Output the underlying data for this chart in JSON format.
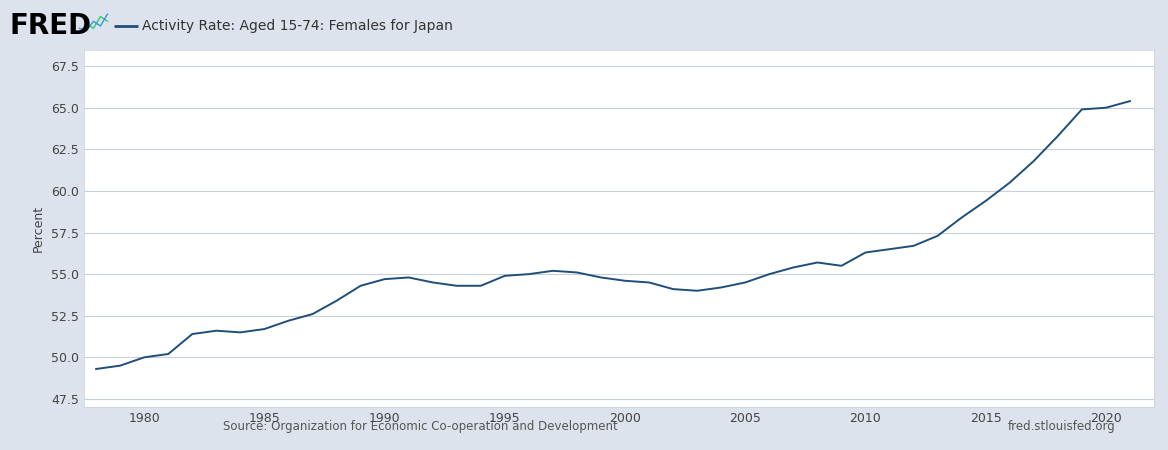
{
  "title": "Activity Rate: Aged 15-74: Females for Japan",
  "ylabel": "Percent",
  "source_left": "Source: Organization for Economic Co-operation and Development",
  "source_right": "fred.stlouisfed.org",
  "line_color": "#1f4e79",
  "background_color": "#dce3ed",
  "plot_bg_color": "#ffffff",
  "grid_color": "#c8d0dc",
  "header_bg": "#dce3ed",
  "ylim": [
    47.0,
    68.5
  ],
  "yticks": [
    47.5,
    50.0,
    52.5,
    55.0,
    57.5,
    60.0,
    62.5,
    65.0,
    67.5
  ],
  "xlim": [
    1977.5,
    2022.0
  ],
  "xticks": [
    1980,
    1985,
    1990,
    1995,
    2000,
    2005,
    2010,
    2015,
    2020
  ],
  "data": {
    "1978": 49.3,
    "1979": 49.5,
    "1980": 50.0,
    "1981": 50.2,
    "1982": 51.4,
    "1983": 51.6,
    "1984": 51.5,
    "1985": 51.7,
    "1986": 52.2,
    "1987": 52.6,
    "1988": 53.4,
    "1989": 54.3,
    "1990": 54.7,
    "1991": 54.8,
    "1992": 54.5,
    "1993": 54.3,
    "1994": 54.3,
    "1995": 54.9,
    "1996": 55.0,
    "1997": 55.2,
    "1998": 55.1,
    "1999": 54.8,
    "2000": 54.6,
    "2001": 54.5,
    "2002": 54.1,
    "2003": 54.0,
    "2004": 54.2,
    "2005": 54.5,
    "2006": 55.0,
    "2007": 55.4,
    "2008": 55.7,
    "2009": 55.5,
    "2010": 56.3,
    "2011": 56.5,
    "2012": 56.7,
    "2013": 57.3,
    "2014": 58.4,
    "2015": 59.4,
    "2016": 60.5,
    "2017": 61.8,
    "2018": 63.3,
    "2019": 64.9,
    "2020": 65.0,
    "2021": 65.4
  }
}
